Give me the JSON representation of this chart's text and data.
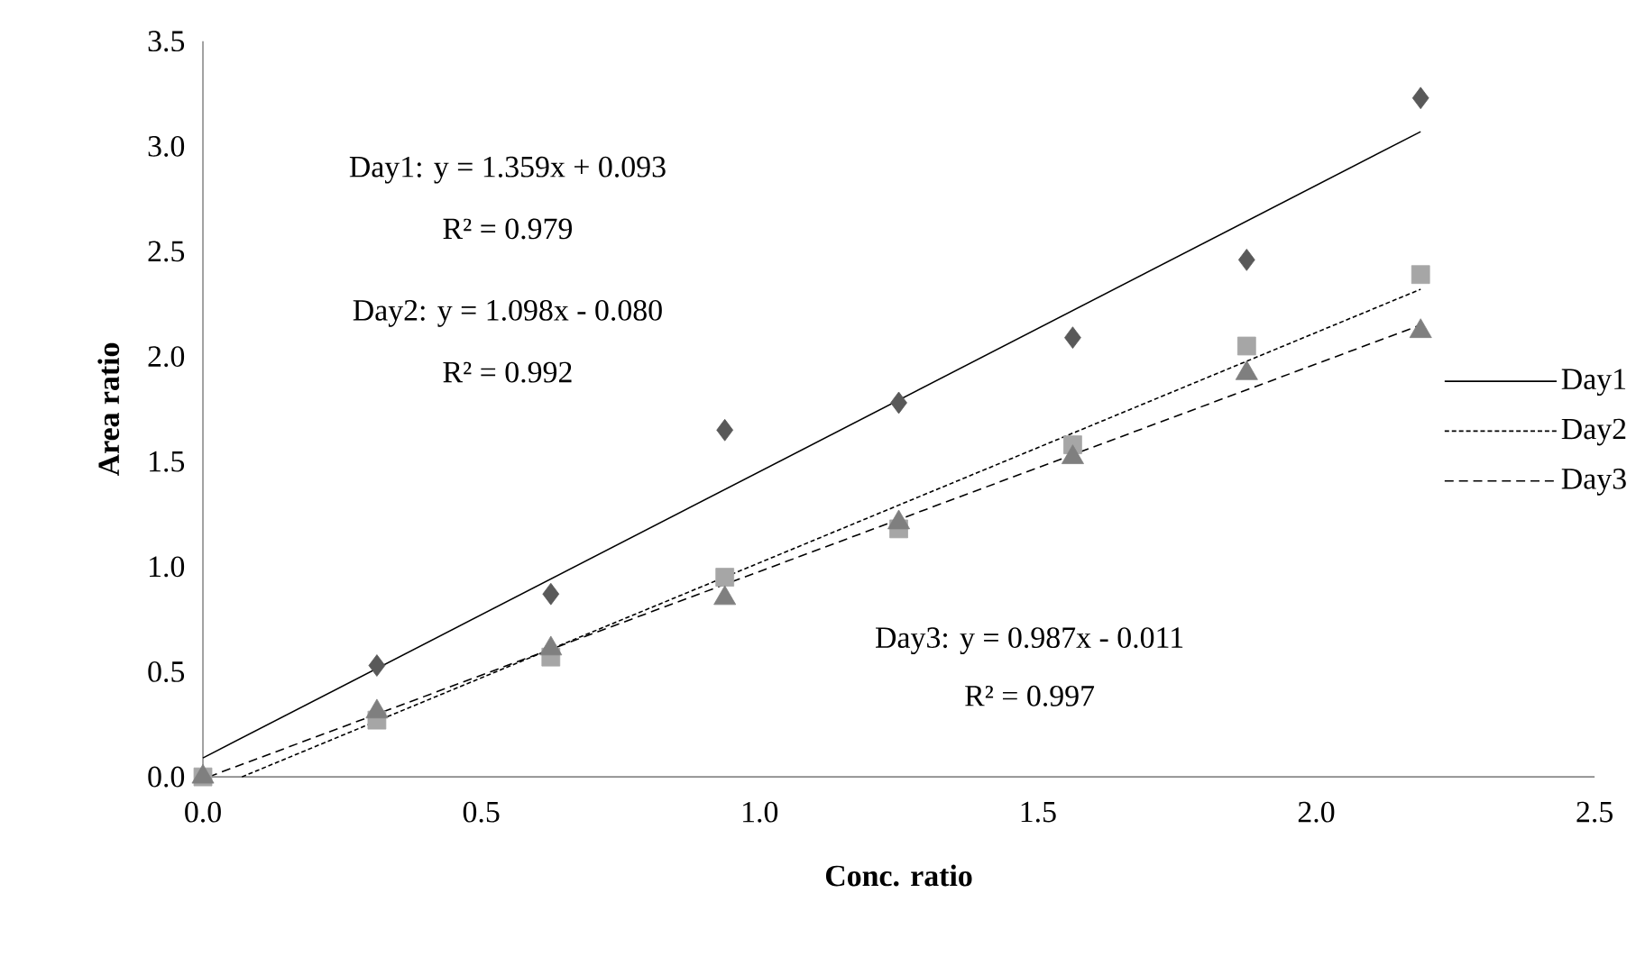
{
  "chart_data": {
    "type": "scatter",
    "xlabel": "Conc. ratio",
    "ylabel": "Area ratio",
    "x": [
      0,
      0.3125,
      0.625,
      0.9375,
      1.25,
      1.5625,
      1.875,
      2.1875
    ],
    "series": [
      {
        "color": "#595959",
        "marker": "diamond",
        "values": [
          null,
          0.53,
          0.87,
          1.65,
          1.78,
          2.09,
          2.46,
          3.23
        ]
      },
      {
        "color": "#a6a6a6",
        "marker": "square",
        "values": [
          0,
          0.27,
          0.57,
          0.95,
          1.18,
          1.58,
          2.05,
          2.39
        ]
      },
      {
        "color": "#7f7f7f",
        "marker": "triangle",
        "values": [
          0,
          0.31,
          0.61,
          0.85,
          1.21,
          1.52,
          1.92,
          2.12
        ]
      },
      {
        "type": "line",
        "name": "Day1",
        "color": "#000000",
        "line_style": "solid",
        "marker": "none",
        "x": [
          0,
          2.1875
        ],
        "values": [
          0.09,
          3.07
        ]
      },
      {
        "type": "line",
        "name": "Day2",
        "color": "#000000",
        "line_style": "dotted",
        "marker": "none",
        "x": [
          0.07,
          2.1875
        ],
        "values": [
          0,
          2.32
        ]
      },
      {
        "type": "line",
        "name": "Day3",
        "color": "#000000",
        "line_style": "dashed",
        "marker": "none",
        "x": [
          0.01,
          2.1875
        ],
        "values": [
          0,
          2.15
        ]
      }
    ],
    "xlim": [
      0,
      2.5
    ],
    "ylim": [
      0,
      3.5
    ],
    "xticks": [
      {
        "value": 0,
        "label": "0.0"
      },
      0.5,
      {
        "value": 1,
        "label": "1.0"
      },
      1.5,
      {
        "value": 2,
        "label": "2.0"
      },
      2.5
    ],
    "yticks": [
      {
        "value": 0,
        "label": "0.0"
      },
      0.5,
      {
        "value": 1,
        "label": "1.0"
      },
      1.5,
      {
        "value": 2,
        "label": "2.0"
      },
      2.5,
      {
        "value": 3,
        "label": "3.0"
      },
      3.5
    ],
    "grid": false,
    "legend": "right",
    "annotations": [
      "Day1: y = 1.359x + 0.093",
      "R² = 0.979",
      "Day2: y = 1.098x - 0.080",
      "R² = 0.992",
      "Day3: y = 0.987x - 0.011",
      "R² = 0.997"
    ]
  }
}
